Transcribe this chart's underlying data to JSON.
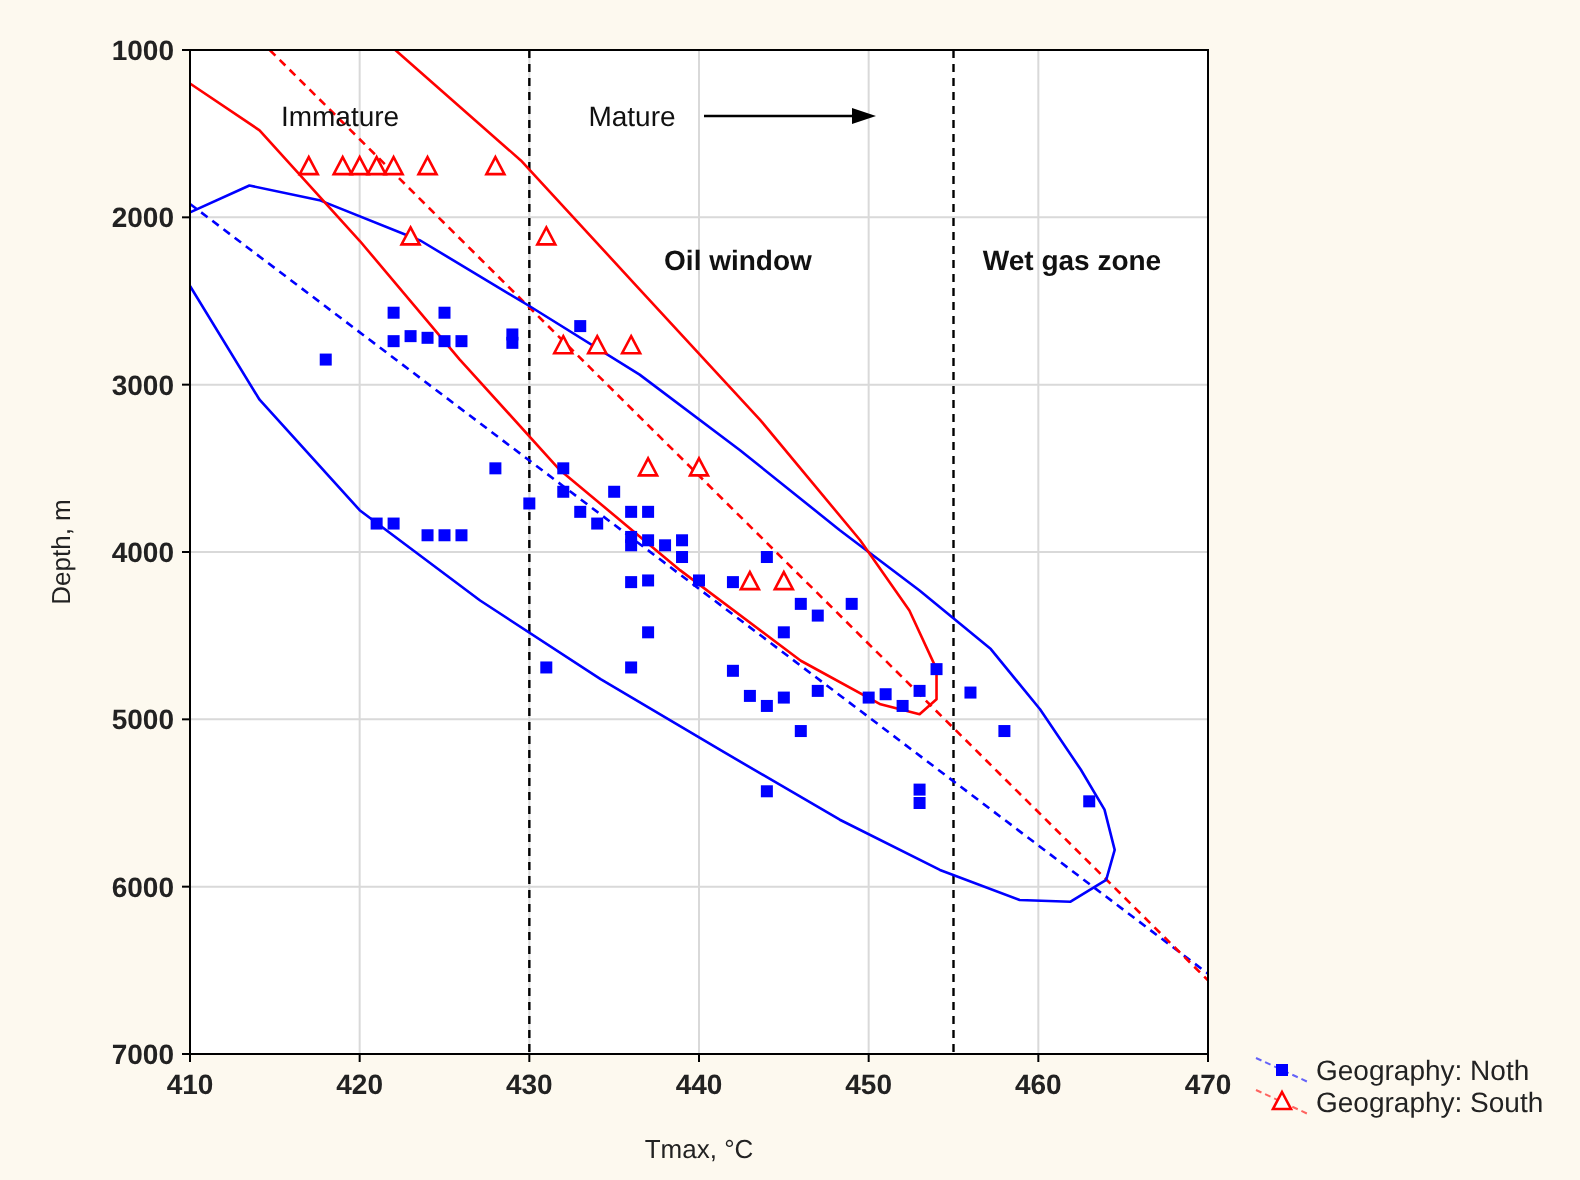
{
  "chart_data": {
    "type": "scatter",
    "xlabel": "Tmax, °C",
    "ylabel": "Depth, m",
    "xlim": [
      410,
      470
    ],
    "xticks": [
      410,
      420,
      430,
      440,
      450,
      460,
      470
    ],
    "ylim": [
      7000,
      1000
    ],
    "yticks": [
      1000,
      2000,
      3000,
      4000,
      5000,
      6000,
      7000
    ],
    "grid": true,
    "legend": "bottom right",
    "annotations": [
      "Immature",
      "Mature",
      "Oil window",
      "Wet gas zone"
    ],
    "ref_lines": [
      {
        "axis": "x",
        "value": 430,
        "color": "#000000",
        "line_style": "dashed"
      },
      {
        "axis": "x",
        "value": 455,
        "color": "#000000",
        "line_style": "dashed"
      }
    ],
    "series": [
      {
        "name": "Geography: Noth",
        "marker": "square",
        "color": "#0000ff",
        "x": [
          422,
          425,
          422,
          423,
          424,
          425,
          426,
          429,
          429,
          418,
          433,
          428,
          430,
          432,
          432,
          433,
          434,
          435,
          436,
          437,
          436,
          436,
          437,
          438,
          439,
          439,
          440,
          436,
          437,
          437,
          421,
          422,
          424,
          425,
          426,
          431,
          436,
          442,
          443,
          444,
          445,
          445,
          446,
          447,
          449,
          446,
          447,
          450,
          451,
          452,
          453,
          454,
          456,
          458,
          444,
          453,
          453,
          463,
          444,
          442
        ],
        "values": [
          2570,
          2570,
          2740,
          2710,
          2720,
          2740,
          2740,
          2700,
          2750,
          2850,
          2650,
          3500,
          3710,
          3500,
          3640,
          3760,
          3830,
          3640,
          3760,
          3760,
          3910,
          3960,
          3930,
          3960,
          3930,
          4030,
          4170,
          4180,
          4170,
          4480,
          3830,
          3830,
          3900,
          3900,
          3900,
          4690,
          4690,
          4710,
          4860,
          4920,
          4870,
          4480,
          4310,
          4380,
          4310,
          5070,
          4830,
          4870,
          4850,
          4920,
          4830,
          4700,
          4840,
          5070,
          5430,
          5420,
          5500,
          5490,
          4030,
          4180
        ]
      },
      {
        "name": "Geography: South",
        "marker": "triangle",
        "color": "#ff0000",
        "x": [
          417,
          419,
          420,
          421,
          422,
          424,
          428,
          423,
          431,
          432,
          434,
          436,
          437,
          440,
          443,
          445
        ],
        "values": [
          1700,
          1700,
          1700,
          1700,
          1700,
          1700,
          1700,
          2120,
          2120,
          2770,
          2770,
          2770,
          3500,
          3500,
          4180,
          4180
        ]
      },
      {
        "type": "line",
        "line_style": "dashed",
        "color": "#0000ff",
        "x": [
          410,
          470
        ],
        "values": [
          1920,
          6520
        ]
      },
      {
        "type": "line",
        "line_style": "dashed",
        "color": "#ff0000",
        "x": [
          414.7,
          470
        ],
        "values": [
          1000,
          6560
        ]
      },
      {
        "type": "line",
        "line_style": "solid",
        "color": "#0000ff",
        "x": [
          410,
          414.1,
          420,
          427.1,
          434.2,
          441.2,
          448.3,
          454.2,
          458.9,
          461.9,
          464,
          464.5,
          463.9,
          462.5,
          460.1,
          457.2,
          453,
          448.3,
          442.4,
          436.5,
          430,
          423.6,
          417.7,
          413.5,
          410
        ],
        "values": [
          2410,
          3090,
          3750,
          4290,
          4760,
          5180,
          5600,
          5900,
          6080,
          6090,
          5960,
          5780,
          5540,
          5300,
          4940,
          4580,
          4230,
          3870,
          3390,
          2940,
          2530,
          2140,
          1900,
          1810,
          1970
        ]
      },
      {
        "type": "line",
        "line_style": "solid",
        "color": "#ff0000",
        "x": [
          422.1,
          429.5,
          436.5,
          443.6,
          449.5,
          452.4,
          454,
          454,
          453,
          450.7,
          446,
          438.9,
          431.8,
          425.9,
          420,
          414.1,
          410
        ],
        "values": [
          1000,
          1660,
          2430,
          3210,
          3930,
          4350,
          4700,
          4880,
          4970,
          4910,
          4650,
          4110,
          3510,
          2850,
          2140,
          1480,
          1200
        ]
      }
    ]
  }
}
